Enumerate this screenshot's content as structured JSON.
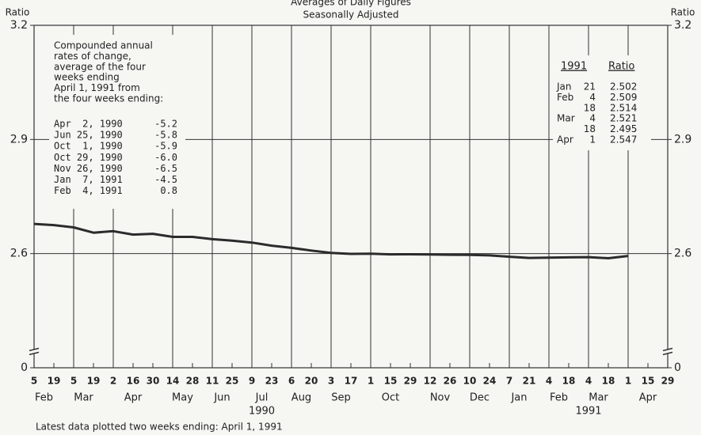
{
  "chart_data": {
    "type": "line",
    "title": "Averages of Daily Figures",
    "subtitle": "Seasonally Adjusted",
    "y_label": "Ratio",
    "categories": [
      "5",
      "19",
      "5",
      "19",
      "2",
      "16",
      "30",
      "14",
      "28",
      "11",
      "25",
      "9",
      "23",
      "6",
      "20",
      "3",
      "17",
      "1",
      "15",
      "29",
      "12",
      "26",
      "10",
      "24",
      "7",
      "21",
      "4",
      "18",
      "4",
      "18",
      "1",
      "15",
      "29"
    ],
    "months": [
      {
        "name": "Feb",
        "first": 0,
        "last": 1
      },
      {
        "name": "Mar",
        "first": 2,
        "last": 3
      },
      {
        "name": "Apr",
        "first": 4,
        "last": 6
      },
      {
        "name": "May",
        "first": 7,
        "last": 8
      },
      {
        "name": "Jun",
        "first": 9,
        "last": 10
      },
      {
        "name": "Jul",
        "first": 11,
        "last": 12
      },
      {
        "name": "Aug",
        "first": 13,
        "last": 14
      },
      {
        "name": "Sep",
        "first": 15,
        "last": 16
      },
      {
        "name": "Oct",
        "first": 17,
        "last": 19
      },
      {
        "name": "Nov",
        "first": 20,
        "last": 21
      },
      {
        "name": "Dec",
        "first": 22,
        "last": 23
      },
      {
        "name": "Jan",
        "first": 24,
        "last": 25
      },
      {
        "name": "Feb",
        "first": 26,
        "last": 27
      },
      {
        "name": "Mar",
        "first": 28,
        "last": 29
      },
      {
        "name": "Apr",
        "first": 30,
        "last": 32
      }
    ],
    "years": [
      {
        "name": "1990",
        "first": 0,
        "last": 23
      },
      {
        "name": "1991",
        "first": 24,
        "last": 32
      }
    ],
    "values": [
      2.678,
      2.675,
      2.669,
      2.655,
      2.659,
      2.65,
      2.652,
      2.644,
      2.644,
      2.638,
      2.634,
      2.629,
      2.621,
      2.615,
      2.608,
      2.602,
      2.594,
      2.598,
      2.583,
      2.585,
      2.579,
      2.575,
      2.573,
      2.56,
      2.53,
      2.502,
      2.509,
      2.514,
      2.521,
      2.495,
      2.547,
      null,
      null
    ],
    "color": "#2b2b2b",
    "ylim": [
      0,
      3.2
    ],
    "yticks": [
      0,
      2.6,
      2.9,
      3.2
    ],
    "axis_break": true,
    "grid": true,
    "note": [
      "Compounded annual",
      "rates of change,",
      "average of the four",
      "weeks ending",
      "April 1, 1991     from",
      "the four weeks ending:"
    ],
    "rates": [
      [
        "Apr  2, 1990",
        "-5.2"
      ],
      [
        "Jun 25, 1990",
        "-5.8"
      ],
      [
        "Oct  1, 1990",
        "-5.9"
      ],
      [
        "Oct 29, 1990",
        "-6.0"
      ],
      [
        "Nov 26, 1990",
        "-6.5"
      ],
      [
        "Jan  7, 1991",
        "-4.5"
      ],
      [
        "Feb  4, 1991",
        "0.8"
      ]
    ],
    "table_header": [
      "1991",
      "Ratio"
    ],
    "table_rows": [
      [
        "Jan",
        "21",
        "2.502"
      ],
      [
        "Feb",
        "4",
        "2.509"
      ],
      [
        null,
        "18",
        "2.514"
      ],
      [
        "Mar",
        "4",
        "2.521"
      ],
      [
        null,
        "18",
        "2.495"
      ],
      [
        "Apr",
        "1",
        "2.547"
      ]
    ],
    "footnote": "Latest data plotted two weeks ending:  April 1, 1991"
  }
}
